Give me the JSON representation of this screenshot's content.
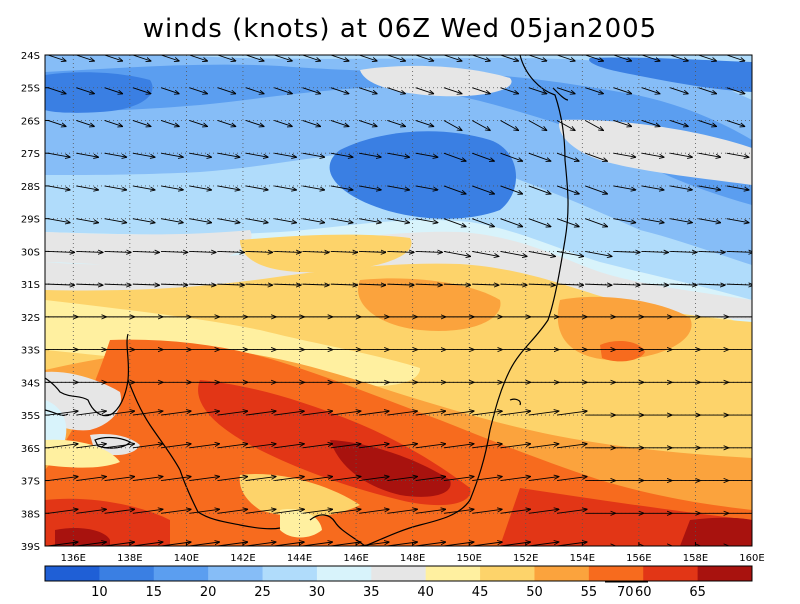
{
  "title": "winds (knots) at 06Z Wed 05jan2005",
  "map": {
    "lat_labels": [
      "24S",
      "25S",
      "26S",
      "27S",
      "28S",
      "29S",
      "30S",
      "31S",
      "32S",
      "33S",
      "34S",
      "35S",
      "36S",
      "37S",
      "38S",
      "39S"
    ],
    "lon_labels": [
      "136E",
      "138E",
      "140E",
      "142E",
      "144E",
      "146E",
      "148E",
      "150E",
      "152E",
      "154E",
      "156E",
      "158E",
      "160E"
    ],
    "lon_range": [
      135,
      160
    ],
    "lat_range": [
      -39,
      -24
    ],
    "gridlines": "dotted",
    "wind_vectors": "arrows every ~1 degree, mostly west-north-westerly",
    "vector_reference": {
      "label": "70"
    }
  },
  "colorbar": {
    "labels": [
      "10",
      "15",
      "20",
      "25",
      "30",
      "35",
      "40",
      "45",
      "50",
      "55",
      "60",
      "65"
    ],
    "colors": [
      "#1f5fd6",
      "#3a7fe3",
      "#5b9ef0",
      "#86bdf7",
      "#b0dcfb",
      "#d8f3fb",
      "#e6e6e6",
      "#fff0a0",
      "#fdd36a",
      "#fba33d",
      "#f76b1e",
      "#e23616",
      "#a8120e"
    ]
  },
  "palette": {
    "blue_strong": "#3a7fe3",
    "blue_mid": "#5b9ef0",
    "blue_light": "#86bdf7",
    "cyan_light": "#b0dcfb",
    "cyan_pale": "#d8f3fb",
    "grey": "#e6e6e6",
    "yellow_pale": "#fff0a0",
    "yellow": "#fdd36a",
    "orange_light": "#fba33d",
    "orange": "#f76b1e",
    "red": "#e23616",
    "dark_red": "#a8120e"
  }
}
